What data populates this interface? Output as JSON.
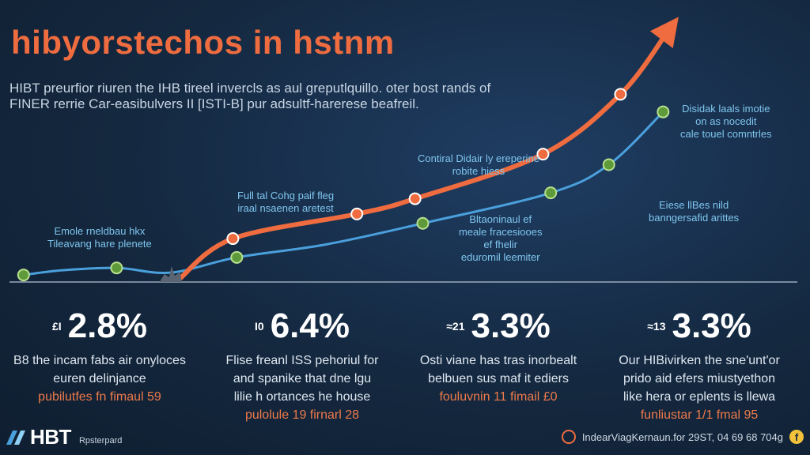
{
  "header": {
    "title": "hibyorstechos in hstnm",
    "subtitle_lines": [
      "HIBT preurfior riuren the IHB tireel invercls as aul greputlquillo. oter bost rands of",
      "FINER rerrie Car-easibulvers II [ISTI-B] pur adsultf-harerese beafreil."
    ]
  },
  "chart_data": {
    "type": "line",
    "title": "hibyorstechos in hstnm",
    "xlabel": "",
    "ylabel": "",
    "xlim": [
      0,
      10
    ],
    "ylim": [
      0,
      10
    ],
    "grid": false,
    "legend": "none",
    "baseline": {
      "y": 0,
      "color": "#9aaabb"
    },
    "series": [
      {
        "color": "#ee6c3f",
        "style": "arrow",
        "points": [
          {
            "x": 2.1,
            "y": 0.1
          },
          {
            "x": 2.8,
            "y": 1.85
          },
          {
            "x": 4.4,
            "y": 2.9
          },
          {
            "x": 5.15,
            "y": 3.55
          },
          {
            "x": 6.8,
            "y": 5.45
          },
          {
            "x": 7.8,
            "y": 8.0
          },
          {
            "x": 8.55,
            "y": 11.3
          }
        ],
        "markers": [
          1,
          2,
          3,
          4,
          5
        ]
      },
      {
        "color": "#4aa0dc",
        "style": "line",
        "points": [
          {
            "x": 0.1,
            "y": 0.3
          },
          {
            "x": 0.6,
            "y": 0.5
          },
          {
            "x": 1.3,
            "y": 0.6
          },
          {
            "x": 2.0,
            "y": 0.4
          },
          {
            "x": 2.85,
            "y": 1.05
          },
          {
            "x": 4.0,
            "y": 1.6
          },
          {
            "x": 5.25,
            "y": 2.5
          },
          {
            "x": 6.9,
            "y": 3.8
          },
          {
            "x": 7.65,
            "y": 5.0
          },
          {
            "x": 8.35,
            "y": 7.25
          }
        ],
        "markers": [
          0,
          2,
          4,
          6,
          7,
          8,
          9
        ]
      }
    ],
    "annotations": [
      {
        "lines": [
          "Emole rneldbau hkx",
          "Tileavang hare plenete"
        ]
      },
      {
        "lines": [
          "Full tal Cohg paif fleg",
          "iraal nsaenen aretest"
        ]
      },
      {
        "lines": [
          "Contiral Didair ly ereperine",
          "robite hiess"
        ]
      },
      {
        "lines": [
          "Bltaoninaul ef",
          "meale fracesiooes",
          "ef fhelir",
          "eduromil leemiter"
        ]
      },
      {
        "lines": [
          "Disidak laals imotie",
          "on as nocedit",
          "cale touel comntrles"
        ]
      },
      {
        "lines": [
          "Eiese llBes nild",
          "banngersafid arittes"
        ]
      }
    ]
  },
  "stats": [
    {
      "icon": "£I",
      "value": "2.8%",
      "lines": [
        "B8 the incam fabs air onyloces",
        "euren delinjance"
      ],
      "source": "pubilutfes fn fimaul 59"
    },
    {
      "icon": "I0",
      "value": "6.4%",
      "lines": [
        "Flise freanl ISS pehoriul for",
        "and spanike that dne lgu",
        "lilie h ortances he house"
      ],
      "source": "pulolule 19 firnarl 28"
    },
    {
      "icon": "≈21",
      "value": "3.3%",
      "lines": [
        "Osti viane has tras inorbealt",
        "belbuen sus maf it ediers"
      ],
      "source": "fouluvnin 11 fimail £0"
    },
    {
      "icon": "≈13",
      "value": "3.3%",
      "lines": [
        "Our HIBivirken the sne'unt'or",
        "prido aid efers miustyethon",
        "like hera or eplents is llewa"
      ],
      "source": "funliustar 1/1 fmal 95"
    }
  ],
  "footer": {
    "logo_text": "HBT",
    "logo_sub": "Rpsterpard",
    "right_text": "IndearViagKernaun.for 29ST, 04 69 68 704g",
    "colors": {
      "accent": "#ee6c3f",
      "badge": "#f2c23a"
    }
  }
}
